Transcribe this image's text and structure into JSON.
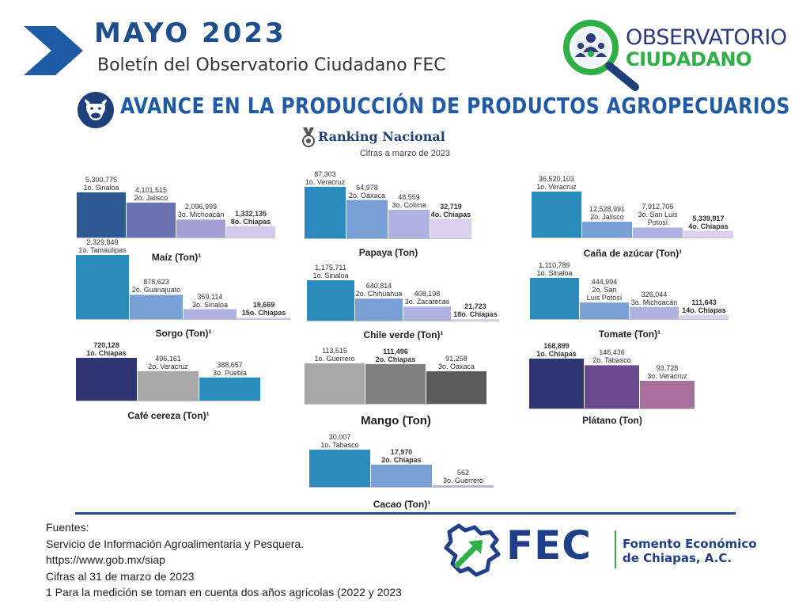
{
  "header": {
    "title": "MAYO  2023",
    "subtitle": "Boletín del Observatorio Ciudadano FEC",
    "logo_line1": "OBSERVATORIO",
    "logo_line2": "CIUDADANO",
    "main_title": "AVANCE EN LA PRODUCCIÓN DE PRODUCTOS AGROPECUARIOS",
    "ranking": "Ranking Nacional",
    "cifras": "Cifras a marzo de 2023"
  },
  "colors": {
    "brand_blue": "#1f4e8c",
    "brand_green": "#2fb047"
  },
  "chart_data": [
    {
      "id": "maiz",
      "type": "bar",
      "title": "Maíz (Ton)¹",
      "colors": [
        "#2e5a94",
        "#6b72b3",
        "#a49fd4",
        "#d3c9ec"
      ],
      "series": [
        {
          "values": [
            5300775,
            4101515,
            2096999,
            1332135
          ]
        }
      ],
      "value_labels": [
        "5,300,775",
        "4,101,515",
        "2,096,999",
        "1,332,135"
      ],
      "categories": [
        "1o. Sinaloa",
        "2o. Jalisco",
        "3o. Michoacán",
        "8o. Chiapas"
      ],
      "highlight": 3
    },
    {
      "id": "papaya",
      "type": "bar",
      "title": "Papaya (Ton)",
      "colors": [
        "#2c8bbd",
        "#789fd6",
        "#aeb3e2",
        "#dcd0f0"
      ],
      "series": [
        {
          "values": [
            87303,
            64978,
            48559,
            32719
          ]
        }
      ],
      "value_labels": [
        "87,303",
        "64,978",
        "48,559",
        "32,719"
      ],
      "categories": [
        "1o. Veracruz",
        "2o. Oaxaca",
        "3o. Colima",
        "4o. Chiapas"
      ],
      "highlight": 3
    },
    {
      "id": "cana",
      "type": "bar",
      "title": "Caña de azúcar  (Ton)¹",
      "colors": [
        "#2c8bbd",
        "#789fd6",
        "#aeb3e2",
        "#dcd0f0"
      ],
      "series": [
        {
          "values": [
            36520103,
            12528991,
            7912705,
            5339917
          ]
        }
      ],
      "value_labels": [
        "36,520,103",
        "12,528,991",
        "7,912,705",
        "5,339,917"
      ],
      "categories": [
        "1o. Veracruz",
        "2o. Jalisco",
        "3o. San Luis\nPotosí",
        "4o. Chiapas"
      ],
      "highlight": 3
    },
    {
      "id": "sorgo",
      "type": "bar",
      "title": "Sorgo  (Ton)¹",
      "colors": [
        "#2c8bbd",
        "#789fd6",
        "#aeb3e2",
        "#dcd0f0"
      ],
      "series": [
        {
          "values": [
            2329849,
            878623,
            359114,
            19669
          ]
        }
      ],
      "value_labels": [
        "2,329,849",
        "878,623",
        "359,114",
        "19,669"
      ],
      "categories": [
        "1o. Tamaulipas",
        "2o. Guanajuato",
        "3o. Sinaloa",
        "15o. Chiapas"
      ],
      "highlight": 3
    },
    {
      "id": "chile",
      "type": "bar",
      "title": "Chile verde (Ton)¹",
      "colors": [
        "#2c8bbd",
        "#789fd6",
        "#aeb3e2",
        "#dcd0f0"
      ],
      "series": [
        {
          "values": [
            1175711,
            640814,
            408198,
            21723
          ]
        }
      ],
      "value_labels": [
        "1,175,711",
        "640,814",
        "408,198",
        "21,723"
      ],
      "categories": [
        "1o. Sinaloa",
        "2o. Chihuahua",
        "3o. Zacatecas",
        "18o. Chiapas"
      ],
      "highlight": 3
    },
    {
      "id": "tomate",
      "type": "bar",
      "title": "Tomate  (Ton)¹",
      "colors": [
        "#2c8bbd",
        "#789fd6",
        "#aeb3e2",
        "#dcd0f0"
      ],
      "series": [
        {
          "values": [
            1110789,
            444994,
            326044,
            111643
          ]
        }
      ],
      "value_labels": [
        "1,110,789",
        "444,994",
        "326,044",
        "111,643"
      ],
      "categories": [
        "1o. Sinaloa",
        "2o. San\nLuis Potosí",
        "3o. Michoacán",
        "14o. Chiapas"
      ],
      "highlight": 3
    },
    {
      "id": "cafe",
      "type": "bar",
      "title": "Café cereza (Ton)¹",
      "colors": [
        "#2e3570",
        "#a8a8a8",
        "#2c8bbd"
      ],
      "series": [
        {
          "values": [
            720128,
            496161,
            388657
          ]
        }
      ],
      "value_labels": [
        "720,128",
        "496,161",
        "388,657"
      ],
      "categories": [
        "1o. Chiapas",
        "2o. Veracruz",
        "3o. Puebla"
      ],
      "highlight": 0
    },
    {
      "id": "mango",
      "type": "bar",
      "title": "Mango (Ton)",
      "colors": [
        "#a8a8a8",
        "#808080",
        "#5a5a5a"
      ],
      "series": [
        {
          "values": [
            113515,
            111496,
            91258
          ]
        }
      ],
      "value_labels": [
        "113,515",
        "111,496",
        "91,258"
      ],
      "categories": [
        "1o. Guerrero",
        "2o. Chiapas",
        "3o. Oaxaca"
      ],
      "highlight": 1
    },
    {
      "id": "platano",
      "type": "bar",
      "title": "Plátano (Ton)",
      "colors": [
        "#2e3570",
        "#6a4a8c",
        "#a8709c"
      ],
      "series": [
        {
          "values": [
            168899,
            146436,
            93728
          ]
        }
      ],
      "value_labels": [
        "168,899",
        "146,436",
        "93,728"
      ],
      "categories": [
        "1o.  Chiapas",
        "2o. Tabasco",
        "3o. Veracruz"
      ],
      "highlight": 0
    },
    {
      "id": "cacao",
      "type": "bar",
      "title": "Cacao (Ton)¹",
      "colors": [
        "#2c8bbd",
        "#789fd6",
        "#aeb3e2"
      ],
      "series": [
        {
          "values": [
            30007,
            17970,
            562
          ]
        }
      ],
      "value_labels": [
        "30,007",
        "17,970",
        "562"
      ],
      "categories": [
        "1o. Tabasco",
        "2o. Chiapas",
        "3o. Guerrero"
      ],
      "highlight": 1
    }
  ],
  "footer": {
    "fuentes_title": "Fuentes:",
    "line1": "Servicio de Información Agroalimentaria y Pesquera.",
    "line2": "https://www.gob.mx/siap",
    "line3": "Cifras al 31 de marzo de 2023",
    "line4": "1 Para la medición se toman en cuenta dos años agrícolas (2022 y 2023",
    "fec": "FEC",
    "fec_name1": "Fomento Económico",
    "fec_name2": "de Chiapas, A.C."
  }
}
